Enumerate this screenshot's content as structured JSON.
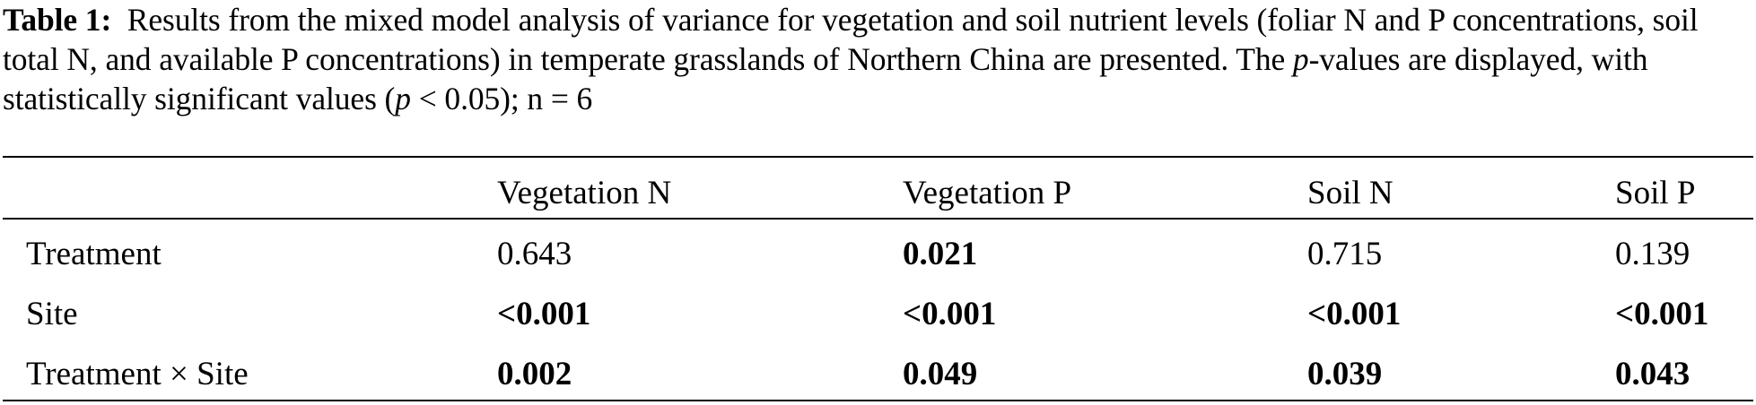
{
  "caption": {
    "label": "Table 1:",
    "text_part1": "Results from the mixed model analysis of variance for vegetation and soil nutrient levels (foliar N and P concentrations, soil total N, and available P concentrations) in temperate grasslands of Northern China are presented. The ",
    "p_italic": "p",
    "text_part2": "-values are displayed, with statistically significant values (",
    "p_italic2": "p",
    "text_part3": " < 0.05); n = 6"
  },
  "table": {
    "headers": [
      "",
      "Vegetation N",
      "Vegetation P",
      "Soil N",
      "Soil P"
    ],
    "rows": [
      {
        "label": "Treatment",
        "cells": [
          {
            "value": "0.643",
            "bold": false
          },
          {
            "value": "0.021",
            "bold": true
          },
          {
            "value": "0.715",
            "bold": false
          },
          {
            "value": "0.139",
            "bold": false
          }
        ]
      },
      {
        "label": "Site",
        "cells": [
          {
            "value": "<0.001",
            "bold": true
          },
          {
            "value": "<0.001",
            "bold": true
          },
          {
            "value": "<0.001",
            "bold": true
          },
          {
            "value": "<0.001",
            "bold": true
          }
        ]
      },
      {
        "label": "Treatment × Site",
        "cells": [
          {
            "value": "0.002",
            "bold": true
          },
          {
            "value": "0.049",
            "bold": true
          },
          {
            "value": "0.039",
            "bold": true
          },
          {
            "value": "0.043",
            "bold": true
          }
        ]
      }
    ]
  }
}
